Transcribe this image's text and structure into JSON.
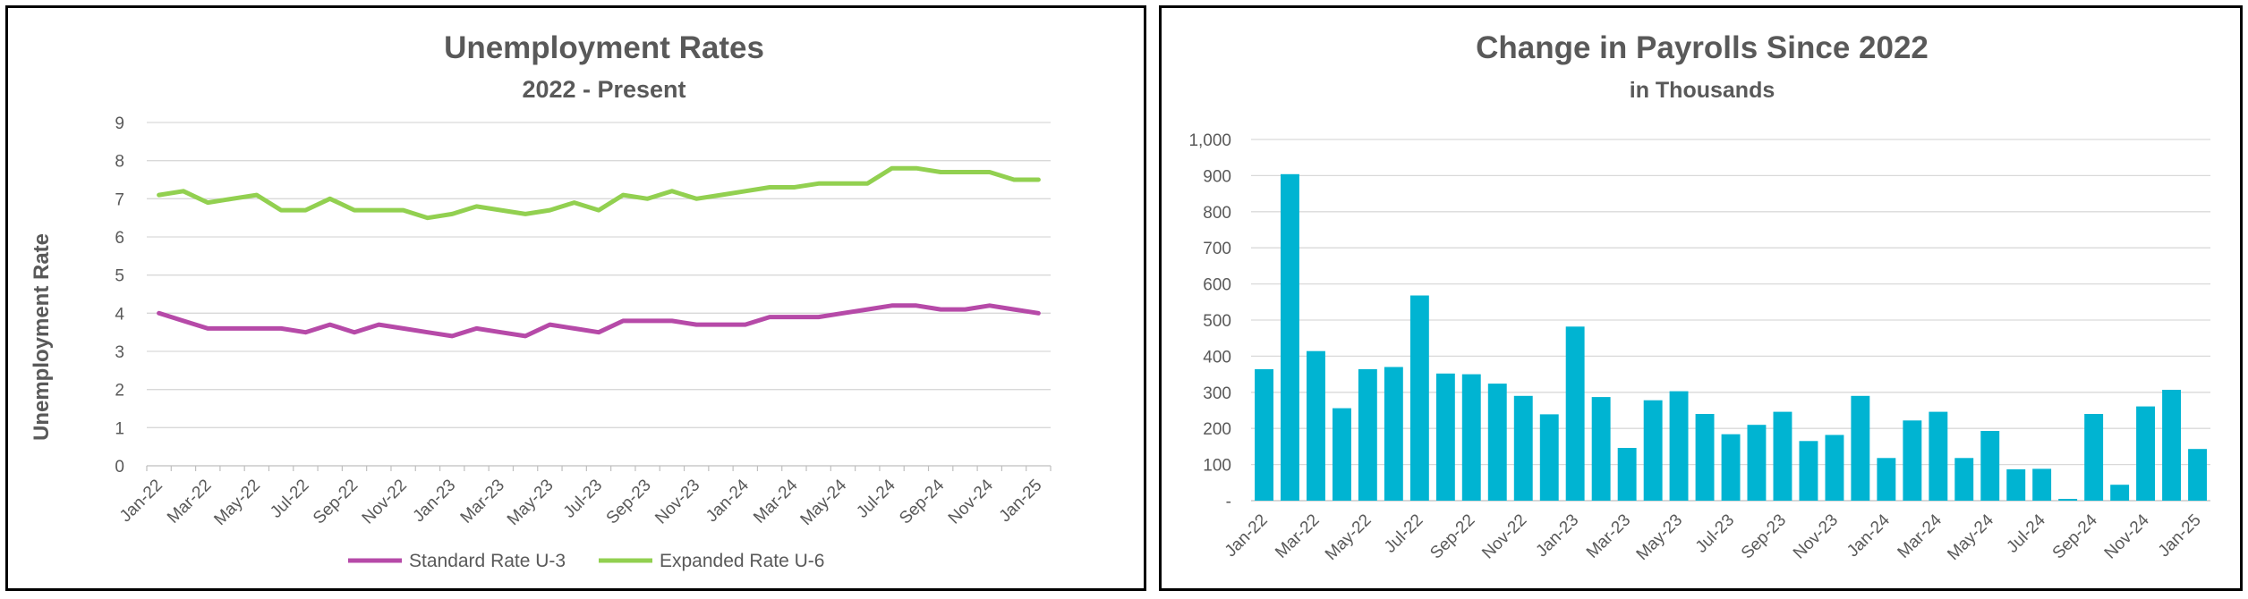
{
  "chart_data": [
    {
      "type": "line",
      "title": "Unemployment Rates",
      "subtitle": "2022 - Present",
      "xlabel": "",
      "ylabel": "Unemployment Rate",
      "ylim": [
        0,
        9
      ],
      "y_ticks": [
        "0",
        "1",
        "2",
        "3",
        "4",
        "5",
        "6",
        "7",
        "8",
        "9"
      ],
      "grid": true,
      "legend": "bottom",
      "categories": [
        "Jan-22",
        "Feb-22",
        "Mar-22",
        "Apr-22",
        "May-22",
        "Jun-22",
        "Jul-22",
        "Aug-22",
        "Sep-22",
        "Oct-22",
        "Nov-22",
        "Dec-22",
        "Jan-23",
        "Feb-23",
        "Mar-23",
        "Apr-23",
        "May-23",
        "Jun-23",
        "Jul-23",
        "Aug-23",
        "Sep-23",
        "Oct-23",
        "Nov-23",
        "Dec-23",
        "Jan-24",
        "Feb-24",
        "Mar-24",
        "Apr-24",
        "May-24",
        "Jun-24",
        "Jul-24",
        "Aug-24",
        "Sep-24",
        "Oct-24",
        "Nov-24",
        "Dec-24",
        "Jan-25"
      ],
      "x_tick_labels": [
        "Jan-22",
        "Mar-22",
        "May-22",
        "Jul-22",
        "Sep-22",
        "Nov-22",
        "Jan-23",
        "Mar-23",
        "May-23",
        "Jul-23",
        "Sep-23",
        "Nov-23",
        "Jan-24",
        "Mar-24",
        "May-24",
        "Jul-24",
        "Sep-24",
        "Nov-24",
        "Jan-25"
      ],
      "series": [
        {
          "name": "Standard Rate U-3",
          "color": "#b64aa8",
          "values": [
            4.0,
            3.8,
            3.6,
            3.6,
            3.6,
            3.6,
            3.5,
            3.7,
            3.5,
            3.7,
            3.6,
            3.5,
            3.4,
            3.6,
            3.5,
            3.4,
            3.7,
            3.6,
            3.5,
            3.8,
            3.8,
            3.8,
            3.7,
            3.7,
            3.7,
            3.9,
            3.9,
            3.9,
            4.0,
            4.1,
            4.2,
            4.2,
            4.1,
            4.1,
            4.2,
            4.1,
            4.0
          ]
        },
        {
          "name": "Expanded Rate U-6",
          "color": "#92d050",
          "values": [
            7.1,
            7.2,
            6.9,
            7.0,
            7.1,
            6.7,
            6.7,
            7.0,
            6.7,
            6.7,
            6.7,
            6.5,
            6.6,
            6.8,
            6.7,
            6.6,
            6.7,
            6.9,
            6.7,
            7.1,
            7.0,
            7.2,
            7.0,
            7.1,
            7.2,
            7.3,
            7.3,
            7.4,
            7.4,
            7.4,
            7.8,
            7.8,
            7.7,
            7.7,
            7.7,
            7.5,
            7.5
          ]
        }
      ]
    },
    {
      "type": "bar",
      "title": "Change in Payrolls Since 2022",
      "subtitle": "in Thousands",
      "xlabel": "",
      "ylabel": "",
      "ylim": [
        0,
        1000
      ],
      "y_ticks": [
        "-",
        "100",
        "200",
        "300",
        "400",
        "500",
        "600",
        "700",
        "800",
        "900",
        "1,000"
      ],
      "grid": true,
      "color": "#00b4d2",
      "categories": [
        "Jan-22",
        "Feb-22",
        "Mar-22",
        "Apr-22",
        "May-22",
        "Jun-22",
        "Jul-22",
        "Aug-22",
        "Sep-22",
        "Oct-22",
        "Nov-22",
        "Dec-22",
        "Jan-23",
        "Feb-23",
        "Mar-23",
        "Apr-23",
        "May-23",
        "Jun-23",
        "Jul-23",
        "Aug-23",
        "Sep-23",
        "Oct-23",
        "Nov-23",
        "Dec-23",
        "Jan-24",
        "Feb-24",
        "Mar-24",
        "Apr-24",
        "May-24",
        "Jun-24",
        "Jul-24",
        "Aug-24",
        "Sep-24",
        "Oct-24",
        "Nov-24",
        "Dec-24",
        "Jan-25"
      ],
      "x_tick_labels": [
        "Jan-22",
        "Mar-22",
        "May-22",
        "Jul-22",
        "Sep-22",
        "Nov-22",
        "Jan-23",
        "Mar-23",
        "May-23",
        "Jul-23",
        "Sep-23",
        "Nov-23",
        "Jan-24",
        "Mar-24",
        "May-24",
        "Jul-24",
        "Sep-24",
        "Nov-24",
        "Jan-25"
      ],
      "values": [
        364,
        904,
        414,
        256,
        364,
        370,
        568,
        352,
        350,
        324,
        290,
        239,
        482,
        287,
        146,
        278,
        303,
        240,
        184,
        210,
        246,
        165,
        182,
        290,
        118,
        222,
        246,
        118,
        193,
        87,
        88,
        5,
        240,
        44,
        261,
        307,
        143
      ]
    }
  ]
}
